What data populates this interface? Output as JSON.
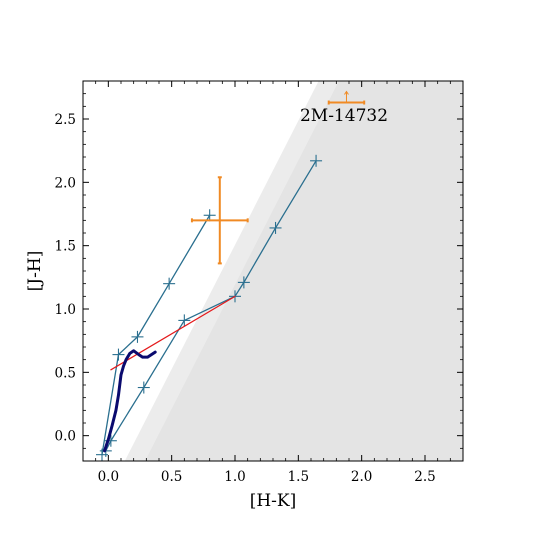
{
  "chart_data": {
    "type": "scatter",
    "xlabel": "[H-K]",
    "ylabel": "[J-H]",
    "xlim": [
      -0.2,
      2.8
    ],
    "ylim": [
      -0.2,
      2.8
    ],
    "x_ticks": [
      0.0,
      0.5,
      1.0,
      1.5,
      2.0,
      2.5
    ],
    "y_ticks": [
      0.0,
      0.5,
      1.0,
      1.5,
      2.0,
      2.5
    ],
    "x_tick_labels": [
      "0.0",
      "0.5",
      "1.0",
      "1.5",
      "2.0",
      "2.5"
    ],
    "y_tick_labels": [
      "0.0",
      "0.5",
      "1.0",
      "1.5",
      "2.0",
      "2.5"
    ],
    "annotations": [
      {
        "text": "2M-14732",
        "x": 1.9,
        "y": 2.5
      }
    ],
    "shaded_regions": [
      {
        "polygon": [
          [
            0.13,
            -0.2
          ],
          [
            1.66,
            2.8
          ],
          [
            2.8,
            2.8
          ],
          [
            2.8,
            -0.2
          ]
        ],
        "color": "#ececec"
      },
      {
        "polygon": [
          [
            0.29,
            -0.2
          ],
          [
            1.82,
            2.8
          ],
          [
            2.8,
            2.8
          ],
          [
            2.8,
            -0.2
          ]
        ],
        "color": "#e4e4e4"
      }
    ],
    "series": [
      {
        "kind": "line-with-markers",
        "color": "#2a6f8f",
        "x": [
          -0.05,
          0.08,
          0.23,
          0.48,
          0.8
        ],
        "y": [
          -0.15,
          0.64,
          0.78,
          1.2,
          1.74
        ]
      },
      {
        "kind": "line-with-markers",
        "color": "#2a6f8f",
        "x": [
          -0.02,
          0.02,
          0.28,
          0.6,
          1.0,
          1.07,
          1.32,
          1.64
        ],
        "y": [
          -0.12,
          -0.04,
          0.38,
          0.91,
          1.1,
          1.21,
          1.64,
          2.17
        ]
      },
      {
        "kind": "line",
        "color": "#e41a1c",
        "x": [
          0.02,
          1.0
        ],
        "y": [
          0.52,
          1.1
        ]
      },
      {
        "kind": "thick-line",
        "color": "#0a0a6e",
        "x": [
          -0.03,
          0.0,
          0.03,
          0.06,
          0.08,
          0.09,
          0.1,
          0.12,
          0.14,
          0.17,
          0.2,
          0.24,
          0.27,
          0.31,
          0.34,
          0.37
        ],
        "y": [
          -0.12,
          -0.03,
          0.08,
          0.2,
          0.32,
          0.4,
          0.48,
          0.55,
          0.6,
          0.65,
          0.67,
          0.64,
          0.62,
          0.62,
          0.64,
          0.66
        ]
      }
    ],
    "error_points": [
      {
        "x": 0.88,
        "y": 1.7,
        "xerr": [
          0.22,
          0.22
        ],
        "yerr": [
          0.34,
          0.34
        ],
        "color": "#f08a24"
      },
      {
        "x": 1.88,
        "y": 2.63,
        "xerr": [
          0.14,
          0.14
        ],
        "upper_limit_arrow": true,
        "color": "#f08a24"
      }
    ]
  }
}
